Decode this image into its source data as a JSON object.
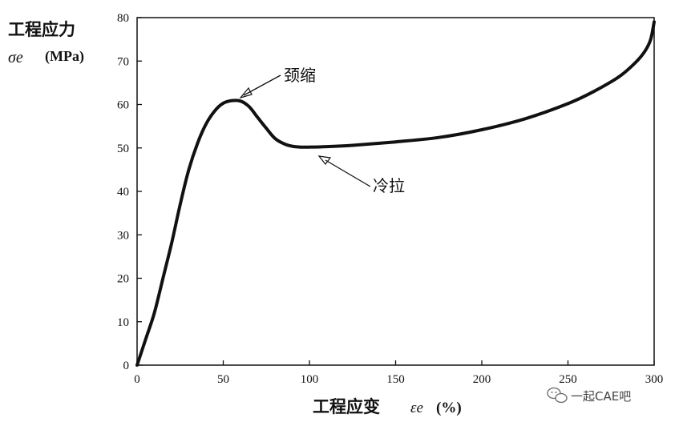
{
  "chart_data": {
    "type": "line",
    "ylabel": "工程应力",
    "ylabel_symbol": "σe",
    "ylabel_unit": "(MPa)",
    "xlabel": "工程应变",
    "xlabel_symbol": "εe",
    "xlabel_unit": "(%)",
    "xlim": [
      0,
      300
    ],
    "ylim": [
      0,
      80
    ],
    "x_ticks": [
      0,
      50,
      100,
      150,
      200,
      250,
      300
    ],
    "y_ticks": [
      0,
      10,
      20,
      30,
      40,
      50,
      60,
      70,
      80
    ],
    "grid": false,
    "series": [
      {
        "x": [
          0,
          5,
          10,
          15,
          20,
          25,
          30,
          35,
          40,
          45,
          50,
          55,
          60,
          65,
          70,
          75,
          80,
          85,
          90,
          95,
          100,
          110,
          125,
          150,
          175,
          200,
          225,
          250,
          265,
          280,
          290,
          295,
          298,
          300
        ],
        "y": [
          0,
          6,
          12,
          20,
          28,
          37,
          45,
          51,
          55.5,
          58.5,
          60.3,
          60.9,
          60.8,
          59.5,
          57,
          54.5,
          52.2,
          51,
          50.4,
          50.2,
          50.2,
          50.3,
          50.6,
          51.4,
          52.4,
          54.2,
          56.7,
          60.2,
          63,
          66.5,
          70,
          72.5,
          75,
          79
        ]
      }
    ],
    "annotations": [
      {
        "text": "颈缩",
        "x": 60,
        "y": 60.8
      },
      {
        "text": "冷拉",
        "x": 100,
        "y": 50.2
      }
    ]
  },
  "watermark": {
    "text": "一起CAE吧"
  }
}
